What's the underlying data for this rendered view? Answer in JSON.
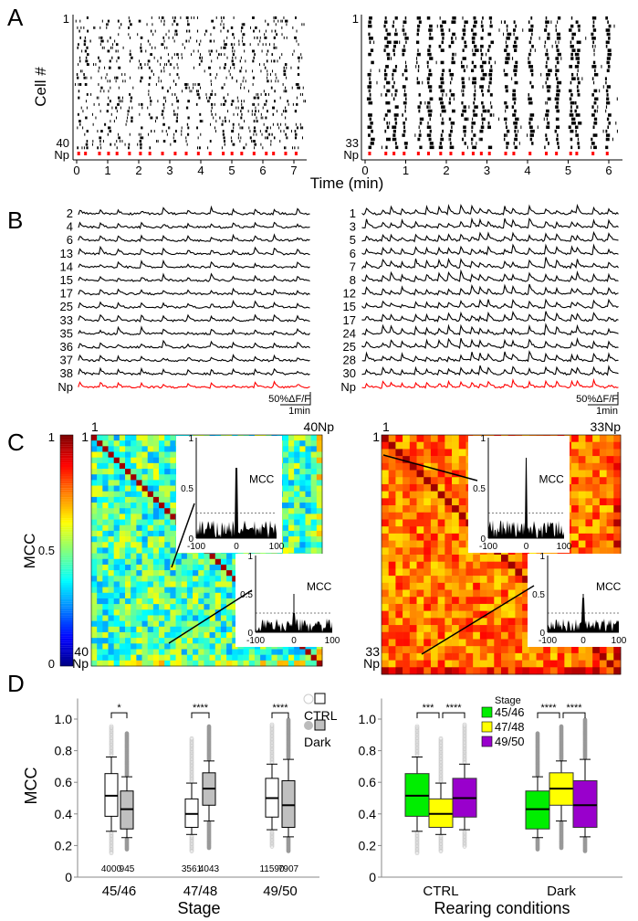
{
  "panels": {
    "A": "A",
    "B": "B",
    "C": "C",
    "D": "D"
  },
  "panel_a": {
    "ylabel": "Cell #",
    "xlabel": "Time (min)",
    "left": {
      "first_cell": "1",
      "last_cell": "40",
      "np_label": "Np",
      "xticks": [
        "0",
        "1",
        "2",
        "3",
        "4",
        "5",
        "6",
        "7"
      ]
    },
    "right": {
      "first_cell": "1",
      "last_cell": "33",
      "np_label": "Np",
      "xticks": [
        "0",
        "1",
        "2",
        "3",
        "4",
        "5",
        "6"
      ]
    }
  },
  "panel_b": {
    "left": {
      "rows": [
        "2",
        "4",
        "6",
        "13",
        "14",
        "15",
        "17",
        "25",
        "33",
        "35",
        "36",
        "37",
        "38",
        "Np"
      ],
      "scale_y": "50%ΔF/F",
      "scale_x": "1min"
    },
    "right": {
      "rows": [
        "1",
        "3",
        "5",
        "6",
        "7",
        "8",
        "12",
        "15",
        "17",
        "24",
        "25",
        "28",
        "30",
        "Np"
      ],
      "scale_y": "50%ΔF/F",
      "scale_x": "1min"
    },
    "trace_color": "#000000",
    "np_color": "#ff0000"
  },
  "panel_c": {
    "colorbar": {
      "label": "MCC",
      "ticks": [
        "1",
        "0.5",
        "0"
      ],
      "colormap": "jet"
    },
    "left": {
      "first": "1",
      "last": "40",
      "np": "Np",
      "top_right": "40Np",
      "colormap": "jet",
      "insets": [
        {
          "annotation": "MCC",
          "yticks": [
            "1",
            "0.5",
            "0"
          ],
          "xticks": [
            "-100",
            "0",
            "100"
          ]
        },
        {
          "annotation": "MCC",
          "yticks": [
            "1",
            "0.5",
            "0"
          ],
          "xticks": [
            "-100",
            "0",
            "100"
          ]
        }
      ]
    },
    "right": {
      "first": "1",
      "last": "33",
      "np": "Np",
      "top_right": "33Np",
      "colormap": "hot",
      "insets": [
        {
          "annotation": "MCC",
          "yticks": [
            "1",
            "0.5",
            "0"
          ],
          "xticks": [
            "-100",
            "0",
            "100"
          ]
        },
        {
          "annotation": "MCC",
          "yticks": [
            "1",
            "0.5",
            "0"
          ],
          "xticks": [
            "-100",
            "0",
            "100"
          ]
        }
      ]
    }
  },
  "chart_data": [
    {
      "type": "box",
      "ylabel": "MCC",
      "xlabel": "Stage",
      "ylim": [
        0,
        1.1
      ],
      "yticks": [
        "0",
        "0.2",
        "0.4",
        "0.6",
        "0.8",
        "1.0"
      ],
      "categories": [
        "45/46",
        "47/48",
        "49/50"
      ],
      "legend": [
        {
          "name": "CTRL",
          "color": "#ffffff"
        },
        {
          "name": "Dark",
          "color": "#c0c0c0"
        }
      ],
      "series": [
        {
          "name": "CTRL",
          "boxes": [
            {
              "whisker_low": 0.29,
              "q1": 0.385,
              "median": 0.515,
              "q3": 0.655,
              "whisker_high": 0.76,
              "min": 0.15,
              "max": 0.96,
              "n": "4000"
            },
            {
              "whisker_low": 0.27,
              "q1": 0.315,
              "median": 0.4,
              "q3": 0.495,
              "whisker_high": 0.595,
              "min": 0.16,
              "max": 0.88,
              "n": "3561"
            },
            {
              "whisker_low": 0.3,
              "q1": 0.38,
              "median": 0.5,
              "q3": 0.625,
              "whisker_high": 0.715,
              "min": 0.19,
              "max": 0.97,
              "n": "11590"
            }
          ]
        },
        {
          "name": "Dark",
          "boxes": [
            {
              "whisker_low": 0.25,
              "q1": 0.305,
              "median": 0.43,
              "q3": 0.545,
              "whisker_high": 0.635,
              "min": 0.17,
              "max": 0.91,
              "n": "945"
            },
            {
              "whisker_low": 0.355,
              "q1": 0.455,
              "median": 0.56,
              "q3": 0.66,
              "whisker_high": 0.735,
              "min": 0.18,
              "max": 0.96,
              "n": "4043"
            },
            {
              "whisker_low": 0.255,
              "q1": 0.315,
              "median": 0.455,
              "q3": 0.61,
              "whisker_high": 0.745,
              "min": 0.16,
              "max": 1.0,
              "n": "7907"
            }
          ]
        }
      ],
      "significance": [
        "*",
        "****",
        "****"
      ]
    },
    {
      "type": "box",
      "ylabel": "",
      "xlabel": "Rearing conditions",
      "ylim": [
        0,
        1.1
      ],
      "yticks": [
        "0",
        "0.2",
        "0.4",
        "0.6",
        "0.8",
        "1.0"
      ],
      "categories": [
        "CTRL",
        "Dark"
      ],
      "legend_title": "Stage",
      "legend": [
        {
          "name": "45/46",
          "color": "#00ee00"
        },
        {
          "name": "47/48",
          "color": "#ffff00"
        },
        {
          "name": "49/50",
          "color": "#9900cc"
        }
      ],
      "significance": [
        [
          "***",
          "****"
        ],
        [
          "****",
          "****"
        ]
      ]
    }
  ]
}
